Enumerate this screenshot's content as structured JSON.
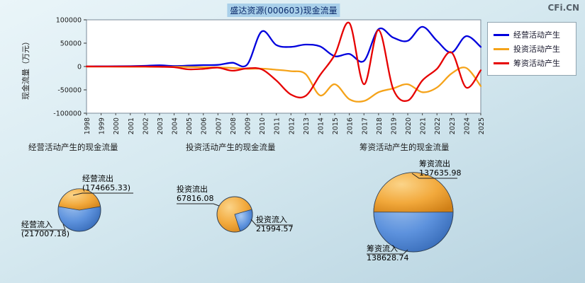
{
  "brand": "CFi.CN",
  "chart": {
    "title": "盛达资源(000603)现金流量",
    "y_axis_label": "现金流量（万元）"
  },
  "legend": {
    "items": [
      {
        "label": "经营活动产生"
      },
      {
        "label": "投资活动产生"
      },
      {
        "label": "筹资活动产生"
      }
    ]
  },
  "chart_data": [
    {
      "type": "line",
      "title": "盛达资源(000603)现金流量",
      "xlabel": "",
      "ylabel": "现金流量（万元）",
      "ylim": [
        -100000,
        100000
      ],
      "yticks": [
        100000,
        50000,
        0,
        -50000,
        -100000
      ],
      "grid": false,
      "legend_position": "right",
      "x": [
        "1998",
        "1999",
        "2000",
        "2001",
        "2002",
        "2003",
        "2004",
        "2005",
        "2006",
        "2007",
        "2008",
        "2009",
        "2010",
        "2011",
        "2012",
        "2013",
        "2014",
        "2015",
        "2016",
        "2017",
        "2018",
        "2019",
        "2020",
        "2021",
        "2022",
        "2023",
        "2024",
        "2025"
      ],
      "series": [
        {
          "name": "经营活动产生",
          "color": "#0000dd",
          "values": [
            200,
            300,
            500,
            800,
            1500,
            2500,
            1000,
            2000,
            3000,
            3500,
            8000,
            4000,
            75000,
            46000,
            42000,
            47000,
            43000,
            22000,
            27000,
            12000,
            80000,
            62000,
            55000,
            85000,
            55000,
            30000,
            65000,
            42000
          ]
        },
        {
          "name": "投资活动产生",
          "color": "#f5a31a",
          "values": [
            -100,
            -150,
            -300,
            -400,
            -500,
            -800,
            -600,
            -1000,
            -1500,
            -2000,
            -3000,
            -5000,
            -4500,
            -7000,
            -10000,
            -16000,
            -62000,
            -38000,
            -70000,
            -74000,
            -55000,
            -47000,
            -38000,
            -55000,
            -45000,
            -15000,
            -3000,
            -42000
          ]
        },
        {
          "name": "筹资活动产生",
          "color": "#e60000",
          "values": [
            100,
            0,
            0,
            0,
            0,
            -500,
            -1500,
            -6000,
            -5000,
            -2500,
            -9000,
            -4000,
            -6000,
            -30000,
            -60000,
            -63000,
            -18000,
            25000,
            93000,
            -38000,
            78000,
            -48000,
            -73000,
            -30000,
            -5000,
            30000,
            -45000,
            -8000
          ]
        }
      ]
    },
    {
      "type": "pie",
      "title": "经营活动产生的现金流量",
      "slices": [
        {
          "label": "经营流出",
          "value": 174665.33,
          "value_label": "(174665.33)",
          "color": "#f0a32a"
        },
        {
          "label": "经营流入",
          "value": 217007.18,
          "value_label": "(217007.18)",
          "color": "#5b8dd9"
        }
      ]
    },
    {
      "type": "pie",
      "title": "投资活动产生的现金流量",
      "slices": [
        {
          "label": "投资流出",
          "value": 67816.08,
          "value_label": "67816.08",
          "color": "#f0a32a"
        },
        {
          "label": "投资流入",
          "value": 21994.57,
          "value_label": "21994.57",
          "color": "#5b8dd9"
        }
      ]
    },
    {
      "type": "pie",
      "title": "筹资活动产生的现金流量",
      "slices": [
        {
          "label": "筹资流出",
          "value": 137635.98,
          "value_label": "137635.98",
          "color": "#f0a32a"
        },
        {
          "label": "筹资流入",
          "value": 138628.74,
          "value_label": "138628.74",
          "color": "#5b8dd9"
        }
      ]
    }
  ]
}
